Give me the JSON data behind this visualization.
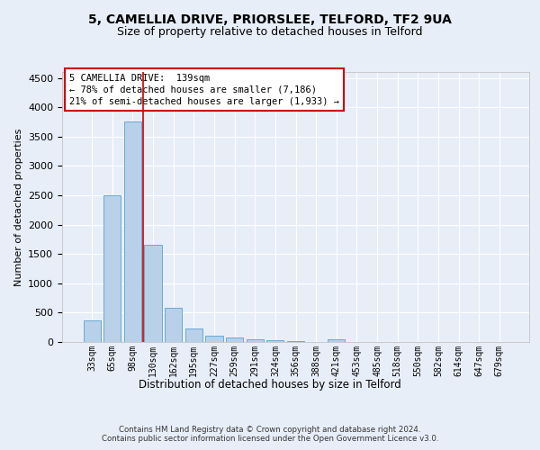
{
  "title1": "5, CAMELLIA DRIVE, PRIORSLEE, TELFORD, TF2 9UA",
  "title2": "Size of property relative to detached houses in Telford",
  "xlabel": "Distribution of detached houses by size in Telford",
  "ylabel": "Number of detached properties",
  "categories": [
    "33sqm",
    "65sqm",
    "98sqm",
    "130sqm",
    "162sqm",
    "195sqm",
    "227sqm",
    "259sqm",
    "291sqm",
    "324sqm",
    "356sqm",
    "388sqm",
    "421sqm",
    "453sqm",
    "485sqm",
    "518sqm",
    "550sqm",
    "582sqm",
    "614sqm",
    "647sqm",
    "679sqm"
  ],
  "values": [
    375,
    2500,
    3750,
    1650,
    590,
    230,
    110,
    70,
    40,
    30,
    18,
    0,
    50,
    0,
    0,
    0,
    0,
    0,
    0,
    0,
    0
  ],
  "bar_color": "#b8d0e8",
  "bar_edge_color": "#6aaad4",
  "vline_color": "#cc0000",
  "annotation_lines": [
    "5 CAMELLIA DRIVE:  139sqm",
    "← 78% of detached houses are smaller (7,186)",
    "21% of semi-detached houses are larger (1,933) →"
  ],
  "annotation_box_color": "#cc0000",
  "ylim": [
    0,
    4600
  ],
  "yticks": [
    0,
    500,
    1000,
    1500,
    2000,
    2500,
    3000,
    3500,
    4000,
    4500
  ],
  "footer": "Contains HM Land Registry data © Crown copyright and database right 2024.\nContains public sector information licensed under the Open Government Licence v3.0.",
  "bg_color": "#e8eef8",
  "plot_bg_color": "#e8eef8",
  "grid_color": "#ffffff",
  "title1_fontsize": 10,
  "title2_fontsize": 9
}
